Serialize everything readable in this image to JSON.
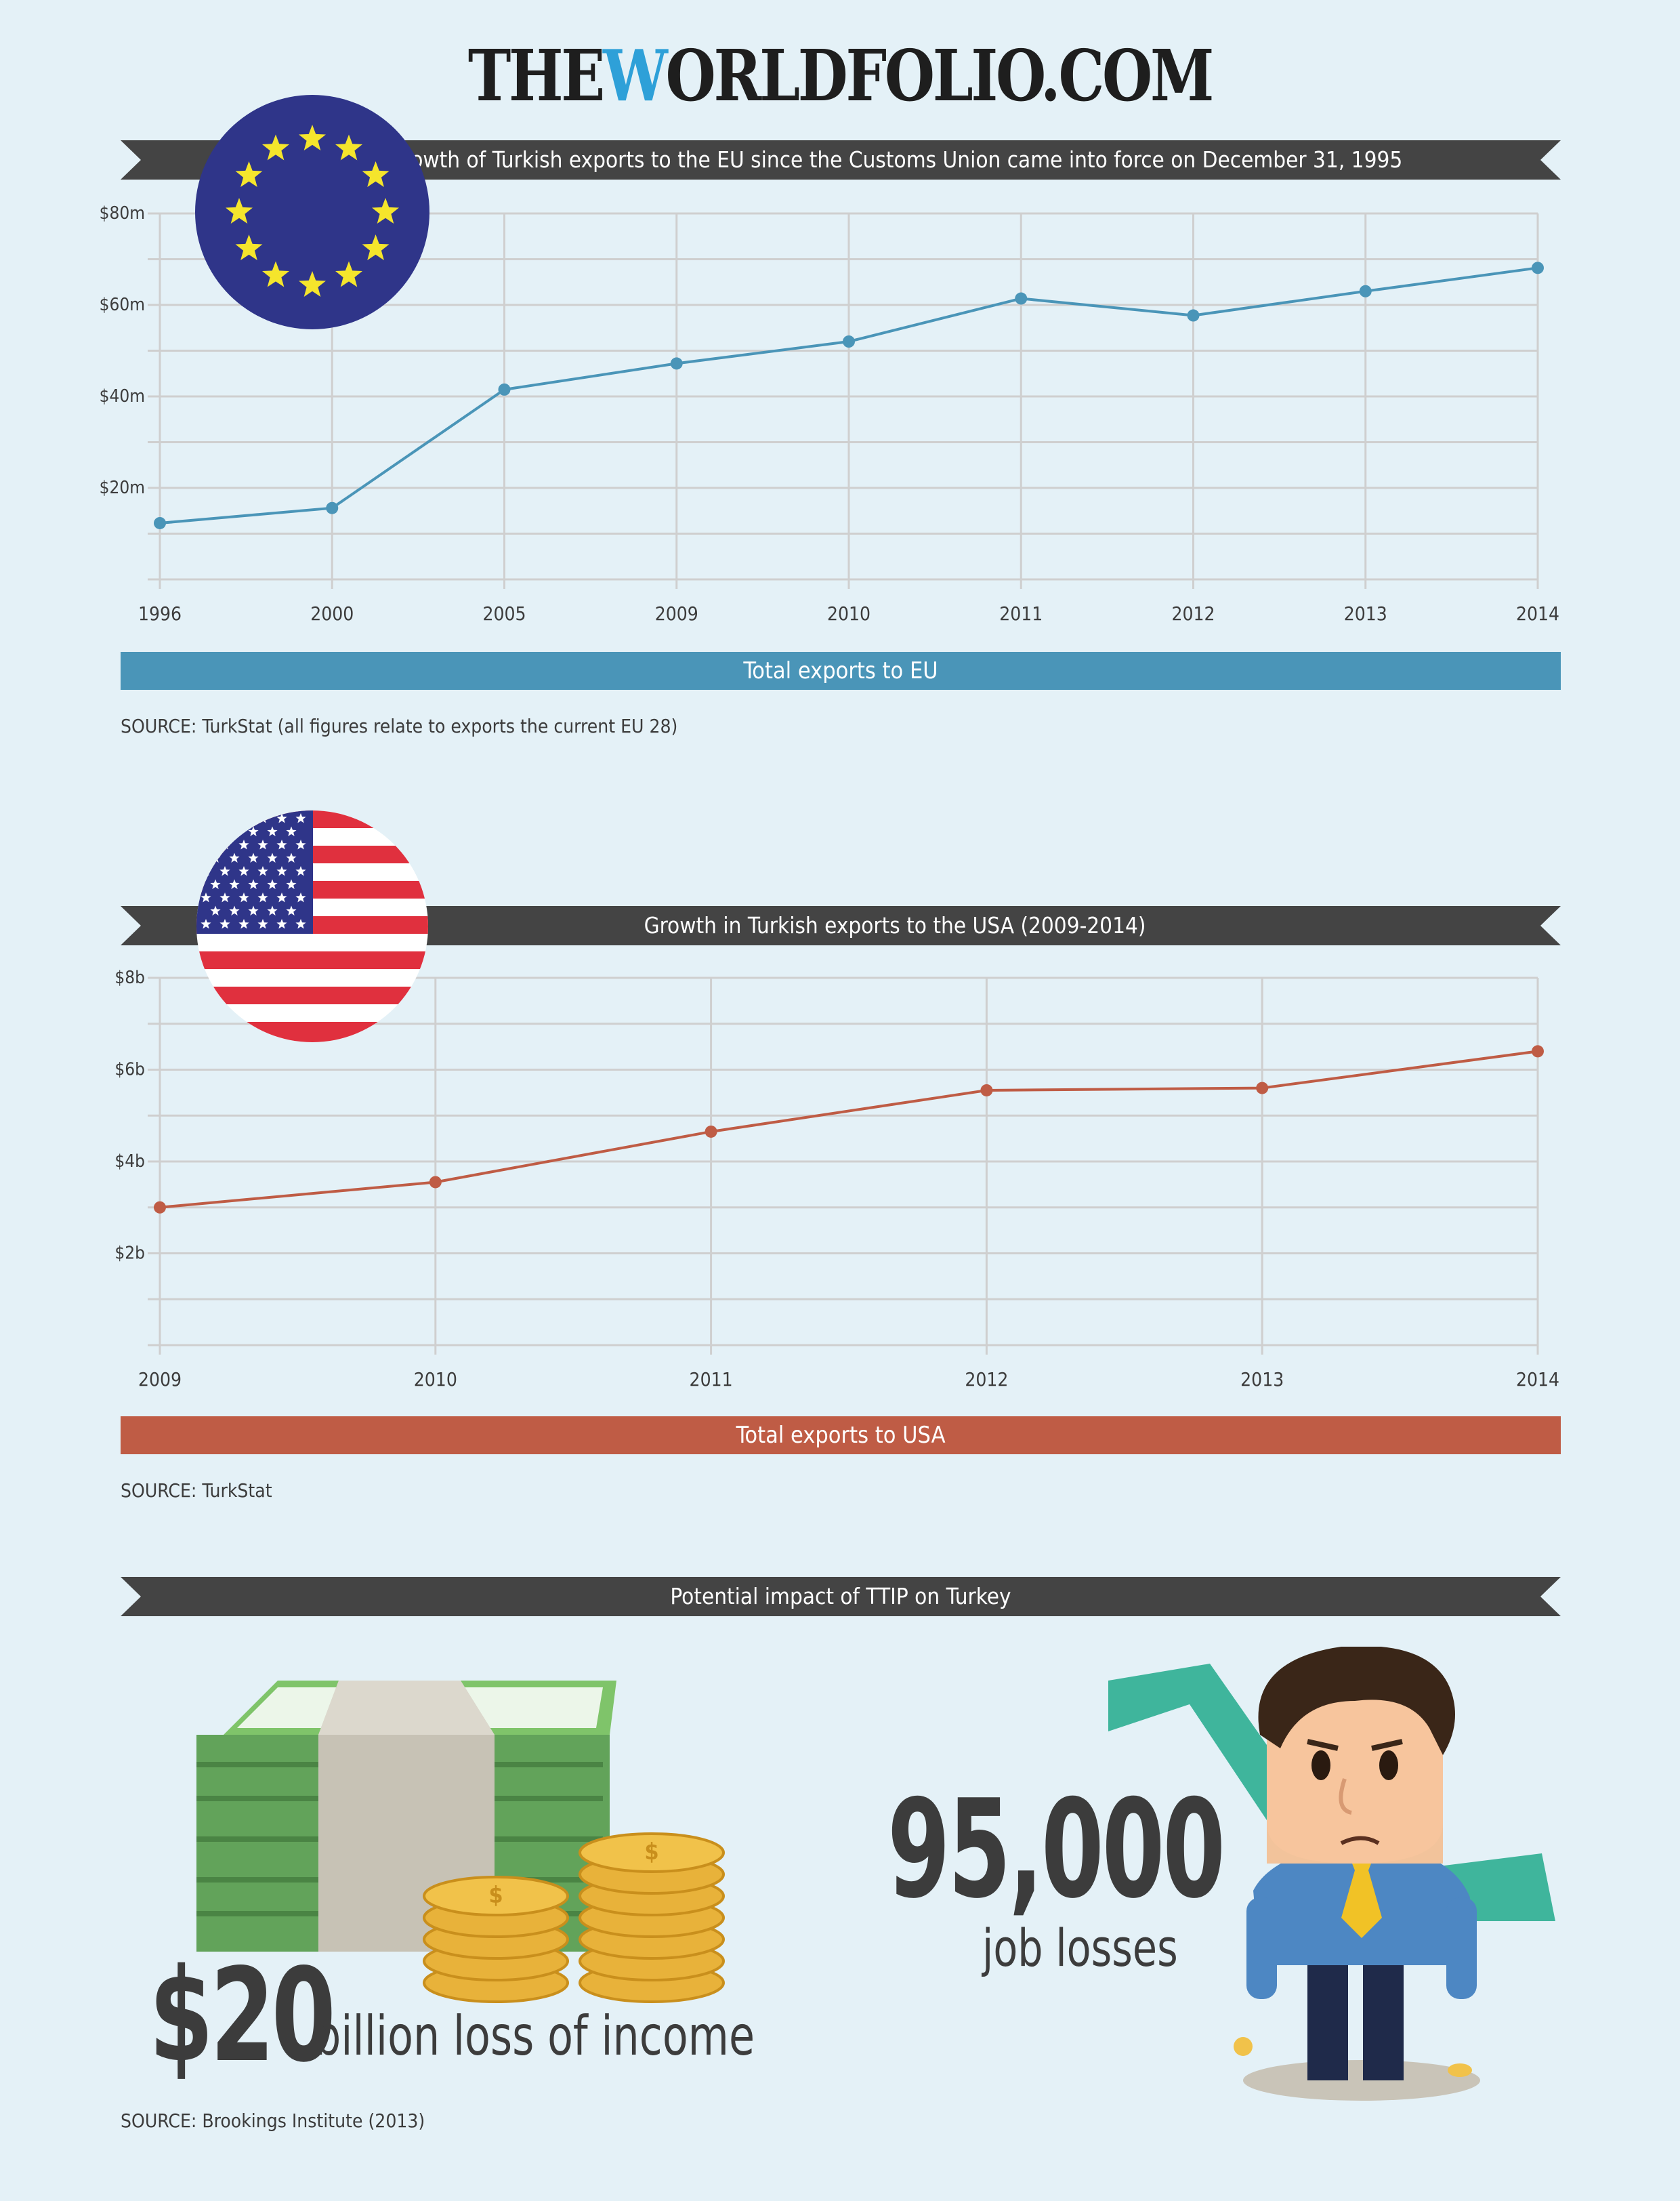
{
  "header": {
    "logo_pre": "THE",
    "logo_w": "W",
    "logo_post": "ORLDFOLIO.COM"
  },
  "section_eu": {
    "banner": "Growth of Turkish exports to the EU since the Customs Union came  into force on December 31, 1995",
    "bar_label": "Total exports to EU",
    "source": "SOURCE: TurkStat (all figures relate to exports the current EU 28)"
  },
  "section_usa": {
    "banner": "Growth in Turkish exports to the USA (2009-2014)",
    "bar_label": "Total exports to USA",
    "source": "SOURCE: TurkStat"
  },
  "section_ttip": {
    "banner": "Potential impact of TTIP on Turkey",
    "income_value": "$20",
    "income_label": "billion loss of income",
    "jobs_value": "95,000",
    "jobs_label": "job losses",
    "source": "SOURCE: Brookings Institute (2013)"
  },
  "colors": {
    "eu_line": "#4a95b8",
    "usa_line": "#bf5c45",
    "banner": "#444444"
  },
  "icons": [
    "eu-flag-icon",
    "us-flag-icon",
    "money-stack-icon",
    "coins-icon",
    "sad-businessman-icon",
    "down-arrow-icon"
  ],
  "chart_data": [
    {
      "type": "line",
      "categories": [
        "1996",
        "2000",
        "2005",
        "2009",
        "2010",
        "2011",
        "2012",
        "2013",
        "2014"
      ],
      "series": [
        {
          "name": "Total exports to EU",
          "values": [
            12.3,
            15.6,
            41.5,
            47.2,
            52.0,
            61.4,
            57.7,
            63.0,
            68.1
          ]
        }
      ],
      "yticks": [
        "$20m",
        "$40m",
        "$60m",
        "$80m"
      ],
      "ylim": [
        0,
        80
      ],
      "grid": true
    },
    {
      "type": "line",
      "categories": [
        "2009",
        "2010",
        "2011",
        "2012",
        "2013",
        "2014"
      ],
      "series": [
        {
          "name": "Total exports to USA",
          "values": [
            3.0,
            3.55,
            4.65,
            5.55,
            5.6,
            6.4
          ]
        }
      ],
      "yticks": [
        "$2b",
        "$4b",
        "$6b",
        "$8b"
      ],
      "ylim": [
        0,
        8
      ],
      "grid": true
    }
  ]
}
